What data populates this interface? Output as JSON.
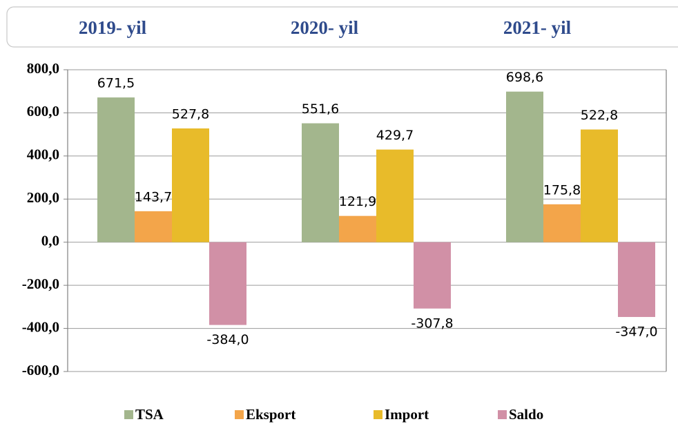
{
  "chart_data": {
    "type": "bar",
    "categories": [
      "2019- yil",
      "2020- yil",
      "2021- yil"
    ],
    "series": [
      {
        "name": "TSA",
        "color": "#a3b68d",
        "values": [
          671.5,
          551.6,
          698.6
        ],
        "value_labels": [
          "671,5",
          "551,6",
          "698,6"
        ]
      },
      {
        "name": "Eksport",
        "color": "#f3a54a",
        "values": [
          143.7,
          121.9,
          175.8
        ],
        "value_labels": [
          "143,7",
          "121,9",
          "175,8"
        ]
      },
      {
        "name": "Import",
        "color": "#e8bb2a",
        "values": [
          527.8,
          429.7,
          522.8
        ],
        "value_labels": [
          "527,8",
          "429,7",
          "522,8"
        ]
      },
      {
        "name": "Saldo",
        "color": "#d190a6",
        "values": [
          -384.0,
          -307.8,
          -347.0
        ],
        "value_labels": [
          "-384,0",
          "-307,8",
          "-347,0"
        ]
      }
    ],
    "ylim": [
      -600,
      800
    ],
    "yticks": [
      {
        "value": -600,
        "label": "-600,0"
      },
      {
        "value": -400,
        "label": "-400,0"
      },
      {
        "value": -200,
        "label": "-200,0"
      },
      {
        "value": 0,
        "label": "0,0"
      },
      {
        "value": 200,
        "label": "200,0"
      },
      {
        "value": 400,
        "label": "400,0"
      },
      {
        "value": 600,
        "label": "600,0"
      },
      {
        "value": 800,
        "label": "800,0"
      }
    ],
    "grid": true
  }
}
